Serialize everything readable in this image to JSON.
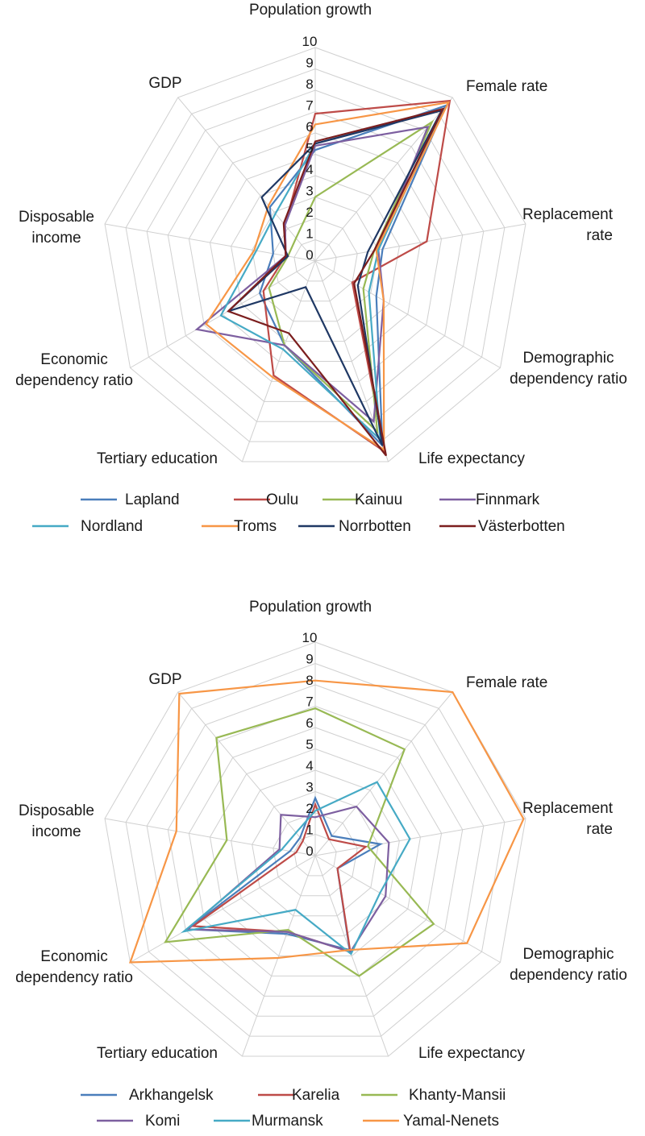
{
  "chart_data": [
    {
      "type": "radar",
      "axes": [
        "Population growth",
        "Female rate",
        "Replacement rate",
        "Demographic dependency ratio",
        "Life expectancy",
        "Tertiary education",
        "Economic dependency ratio",
        "Disposable income",
        "GDP"
      ],
      "axis_lines": [
        [
          "Population growth"
        ],
        [
          "Female rate"
        ],
        [
          "Replacement",
          "rate"
        ],
        [
          "Demographic",
          "dependency ratio"
        ],
        [
          "Life expectancy"
        ],
        [
          "Tertiary education"
        ],
        [
          "Economic",
          "dependency ratio"
        ],
        [
          "Disposable",
          "income"
        ],
        [
          "GDP"
        ]
      ],
      "ticks": [
        "0",
        "1",
        "2",
        "3",
        "4",
        "5",
        "6",
        "7",
        "8",
        "9",
        "10"
      ],
      "rmax": 10,
      "series": [
        {
          "name": "Lapland",
          "color": "#4a7ebb",
          "values": [
            5.2,
            9.5,
            3.2,
            3.3,
            9.2,
            4.2,
            3.0,
            2.0,
            3.3
          ]
        },
        {
          "name": "Oulu",
          "color": "#be4b48",
          "values": [
            6.9,
            9.8,
            5.3,
            2.0,
            9.5,
            5.7,
            2.8,
            1.4,
            2.2
          ]
        },
        {
          "name": "Kainuu",
          "color": "#98b954",
          "values": [
            3.0,
            8.5,
            2.8,
            2.6,
            8.5,
            4.2,
            2.5,
            1.3,
            1.4
          ]
        },
        {
          "name": "Finnmark",
          "color": "#7d5fa0",
          "values": [
            5.4,
            8.2,
            3.0,
            3.7,
            8.0,
            4.2,
            6.4,
            1.4,
            2.2
          ]
        },
        {
          "name": "Nordland",
          "color": "#46aac5",
          "values": [
            5.5,
            9.3,
            3.0,
            2.9,
            8.9,
            4.4,
            5.1,
            2.8,
            2.9
          ]
        },
        {
          "name": "Troms",
          "color": "#f79646",
          "values": [
            6.4,
            9.7,
            2.9,
            3.7,
            9.4,
            5.8,
            5.9,
            2.9,
            3.4
          ]
        },
        {
          "name": "Norrbotten",
          "color": "#1f3864",
          "values": [
            5.5,
            9.2,
            2.5,
            2.3,
            9.2,
            1.3,
            4.7,
            1.3,
            3.9
          ]
        },
        {
          "name": "Västerbotten",
          "color": "#7b1e1e",
          "values": [
            5.6,
            9.3,
            2.8,
            2.1,
            9.7,
            3.6,
            4.7,
            1.4,
            2.3
          ]
        }
      ]
    },
    {
      "type": "radar",
      "axes": [
        "Population growth",
        "Female rate",
        "Replacement rate",
        "Demographic dependency ratio",
        "Life expectancy",
        "Tertiary education",
        "Economic dependency ratio",
        "Disposable income",
        "GDP"
      ],
      "axis_lines": [
        [
          "Population growth"
        ],
        [
          "Female rate"
        ],
        [
          "Replacement",
          "rate"
        ],
        [
          "Demographic",
          "dependency ratio"
        ],
        [
          "Life expectancy"
        ],
        [
          "Tertiary education"
        ],
        [
          "Economic",
          "dependency ratio"
        ],
        [
          "Disposable",
          "income"
        ],
        [
          "GDP"
        ]
      ],
      "ticks": [
        "0",
        "1",
        "2",
        "3",
        "4",
        "5",
        "6",
        "7",
        "8",
        "9",
        "10"
      ],
      "rmax": 10,
      "series": [
        {
          "name": "Arkhangelsk",
          "color": "#4a7ebb",
          "values": [
            2.7,
            1.2,
            3.1,
            1.2,
            4.7,
            3.9,
            6.9,
            1.2,
            1.1
          ]
        },
        {
          "name": "Karelia",
          "color": "#be4b48",
          "values": [
            2.4,
            1.0,
            2.4,
            1.2,
            4.8,
            3.8,
            6.6,
            0.9,
            0.9
          ]
        },
        {
          "name": "Khanty-Mansii",
          "color": "#98b954",
          "values": [
            6.9,
            6.5,
            2.5,
            6.4,
            6.0,
            3.7,
            8.1,
            4.2,
            7.2
          ]
        },
        {
          "name": "Komi",
          "color": "#7d5fa0",
          "values": [
            1.8,
            3.0,
            3.5,
            3.8,
            4.8,
            3.8,
            6.9,
            1.7,
            2.5
          ]
        },
        {
          "name": "Murmansk",
          "color": "#46aac5",
          "values": [
            2.1,
            4.5,
            4.5,
            3.5,
            4.9,
            2.7,
            7.1,
            1.6,
            1.4
          ]
        },
        {
          "name": "Yamal-Nenets",
          "color": "#f79646",
          "values": [
            8.2,
            10.0,
            9.9,
            8.2,
            4.7,
            5.1,
            10.0,
            6.6,
            9.9
          ]
        }
      ]
    }
  ]
}
